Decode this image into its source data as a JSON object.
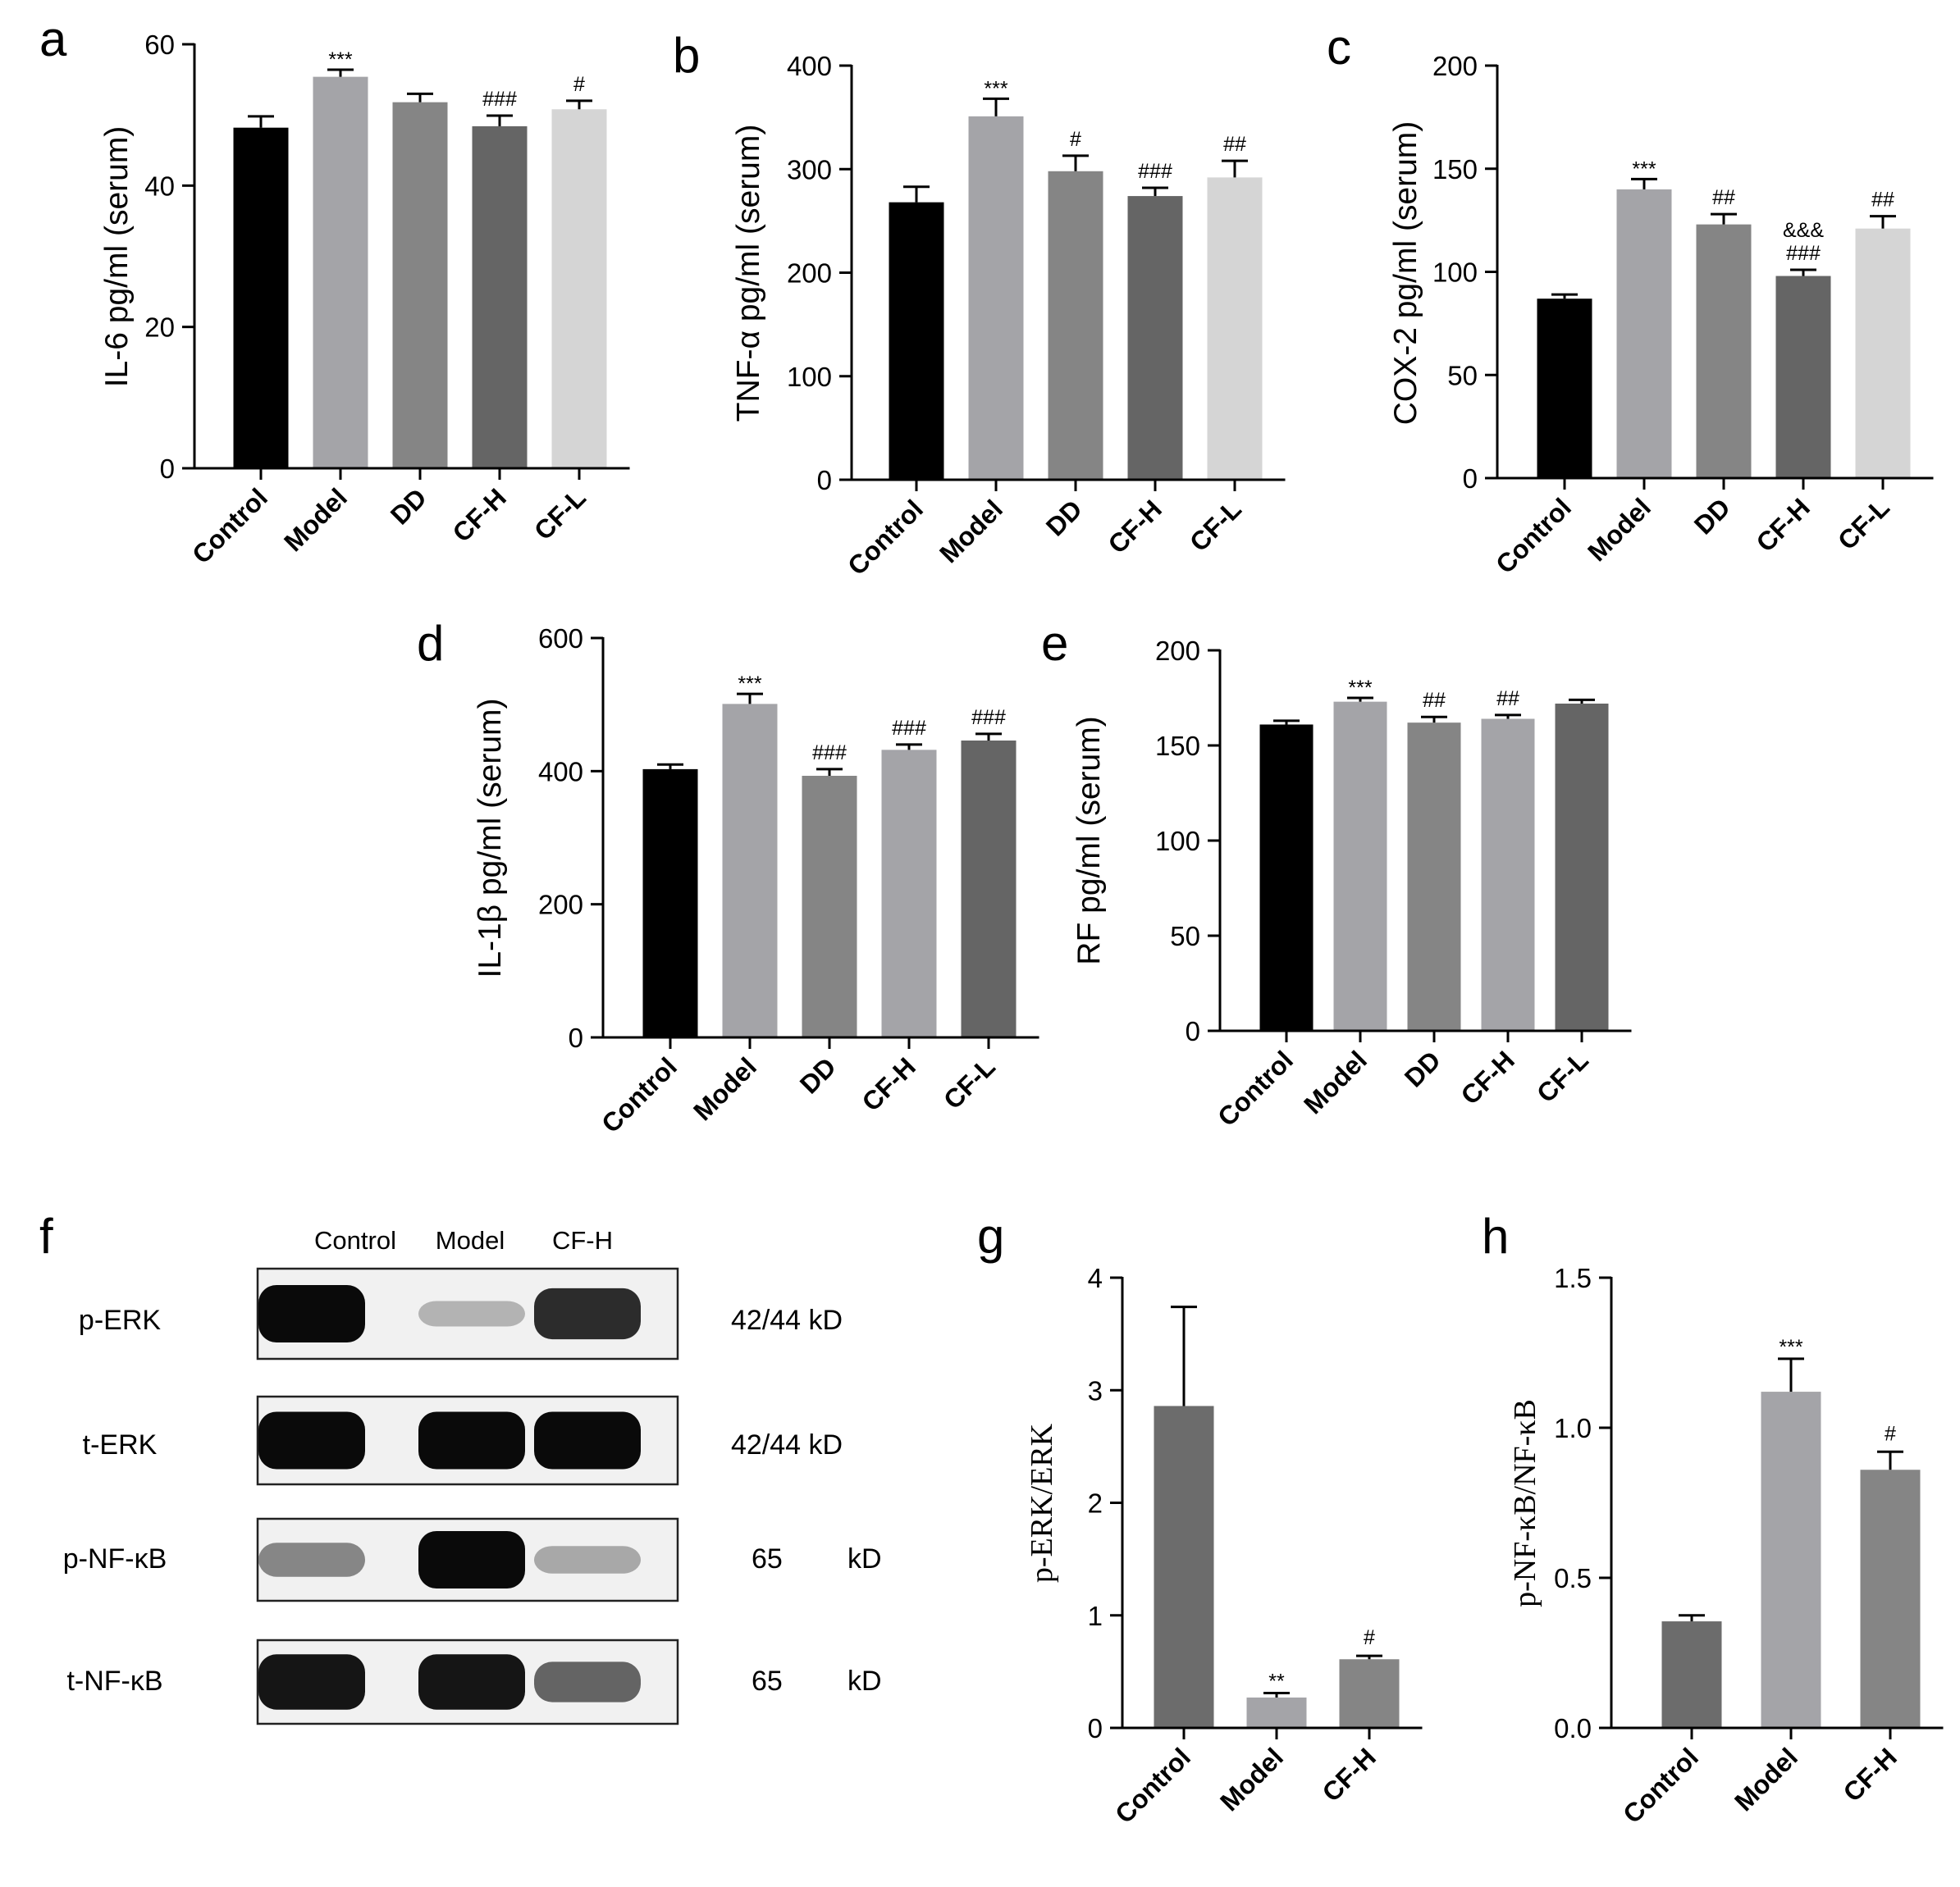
{
  "chart_data": [
    {
      "panel": "a",
      "type": "bar",
      "ylabel": "IL-6 pg/ml (serum)",
      "categories": [
        "Control",
        "Model",
        "DD",
        "CF-H",
        "CF-L"
      ],
      "values": [
        48.2,
        55.4,
        51.8,
        48.4,
        50.8
      ],
      "errors": [
        1.6,
        1.0,
        1.2,
        1.5,
        1.2
      ],
      "annotations": [
        [],
        [
          "***"
        ],
        [],
        [
          "###"
        ],
        [
          "#"
        ]
      ],
      "colors": [
        "#000000",
        "#a4a4a8",
        "#858585",
        "#656565",
        "#d5d5d5"
      ],
      "ylim": [
        0,
        60
      ],
      "yticks": [
        0,
        20,
        40,
        60
      ]
    },
    {
      "panel": "b",
      "type": "bar",
      "ylabel": "TNF-α pg/ml (serum)",
      "categories": [
        "Control",
        "Model",
        "DD",
        "CF-H",
        "CF-L"
      ],
      "values": [
        268,
        351,
        298,
        274,
        292
      ],
      "errors": [
        15,
        17,
        15,
        8,
        16
      ],
      "annotations": [
        [],
        [
          "***"
        ],
        [
          "#"
        ],
        [
          "###"
        ],
        [
          "##"
        ]
      ],
      "colors": [
        "#000000",
        "#a4a4a8",
        "#858585",
        "#656565",
        "#d5d5d5"
      ],
      "ylim": [
        0,
        400
      ],
      "yticks": [
        0,
        100,
        200,
        300,
        400
      ]
    },
    {
      "panel": "c",
      "type": "bar",
      "ylabel": "COX-2 pg/ml (serum)",
      "categories": [
        "Control",
        "Model",
        "DD",
        "CF-H",
        "CF-L"
      ],
      "values": [
        87,
        140,
        123,
        98,
        121
      ],
      "errors": [
        2,
        5,
        5,
        3,
        6
      ],
      "annotations": [
        [],
        [
          "***"
        ],
        [
          "##"
        ],
        [
          "&&&",
          "###"
        ],
        [
          "##"
        ]
      ],
      "colors": [
        "#000000",
        "#a4a4a8",
        "#858585",
        "#656565",
        "#d5d5d5"
      ],
      "ylim": [
        0,
        200
      ],
      "yticks": [
        0,
        50,
        100,
        150,
        200
      ]
    },
    {
      "panel": "d",
      "type": "bar",
      "ylabel": "IL-1β pg/ml (serum)",
      "categories": [
        "Control",
        "Model",
        "DD",
        "CF-H",
        "CF-L"
      ],
      "values": [
        403,
        501,
        393,
        432,
        446
      ],
      "errors": [
        7,
        15,
        10,
        8,
        10
      ],
      "annotations": [
        [],
        [
          "***"
        ],
        [
          "###"
        ],
        [
          "###"
        ],
        [
          "###"
        ]
      ],
      "colors": [
        "#000000",
        "#a4a4a8",
        "#858585",
        "#a4a4a8",
        "#656565"
      ],
      "ylim": [
        0,
        600
      ],
      "yticks": [
        0,
        200,
        400,
        600
      ]
    },
    {
      "panel": "e",
      "type": "bar",
      "ylabel": "RF pg/ml (serum)",
      "categories": [
        "Control",
        "Model",
        "DD",
        "CF-H",
        "CF-L"
      ],
      "values": [
        161,
        173,
        162,
        164,
        172
      ],
      "errors": [
        2,
        2,
        3,
        2,
        2
      ],
      "annotations": [
        [],
        [
          "***"
        ],
        [
          "##"
        ],
        [
          "##"
        ],
        []
      ],
      "colors": [
        "#000000",
        "#a4a4a8",
        "#858585",
        "#a4a4a8",
        "#656565"
      ],
      "ylim": [
        0,
        200
      ],
      "yticks": [
        0,
        50,
        100,
        150,
        200
      ]
    },
    {
      "panel": "g",
      "type": "bar",
      "ylabel": "p-ERK/ERK",
      "categories": [
        "Control",
        "Model",
        "CF-H"
      ],
      "values": [
        2.86,
        0.27,
        0.61
      ],
      "errors": [
        0.88,
        0.04,
        0.03
      ],
      "annotations": [
        [],
        [
          "**"
        ],
        [
          "#"
        ]
      ],
      "colors": [
        "#6c6c6c",
        "#a4a4a8",
        "#858585"
      ],
      "ylim": [
        0,
        4
      ],
      "yticks": [
        0,
        1,
        2,
        3,
        4
      ]
    },
    {
      "panel": "h",
      "type": "bar",
      "ylabel": "p-NF-κB/NF-κB",
      "categories": [
        "Control",
        "Model",
        "CF-H"
      ],
      "values": [
        0.355,
        1.12,
        0.86
      ],
      "errors": [
        0.02,
        0.11,
        0.06
      ],
      "annotations": [
        [],
        [
          "***"
        ],
        [
          "#"
        ]
      ],
      "colors": [
        "#6c6c6c",
        "#a4a4a8",
        "#858585"
      ],
      "ylim": [
        0,
        1.5
      ],
      "yticks": [
        "0.0",
        "0.5",
        "1.0",
        "1.5"
      ]
    }
  ],
  "western_blot": {
    "panel": "f",
    "lanes": [
      "Control",
      "Model",
      "CF-H"
    ],
    "rows": [
      {
        "label": "p-ERK",
        "size": "42/44 kD",
        "band_intensity": [
          1.0,
          0.25,
          0.85
        ]
      },
      {
        "label": "t-ERK",
        "size": "42/44 kD",
        "band_intensity": [
          1.0,
          1.0,
          1.0
        ]
      },
      {
        "label": "p-NF-κB",
        "size_value": "65",
        "size_unit": "kD",
        "band_intensity": [
          0.45,
          1.0,
          0.3
        ]
      },
      {
        "label": "t-NF-κB",
        "size_value": "65",
        "size_unit": "kD",
        "band_intensity": [
          0.95,
          0.95,
          0.6
        ]
      }
    ]
  }
}
